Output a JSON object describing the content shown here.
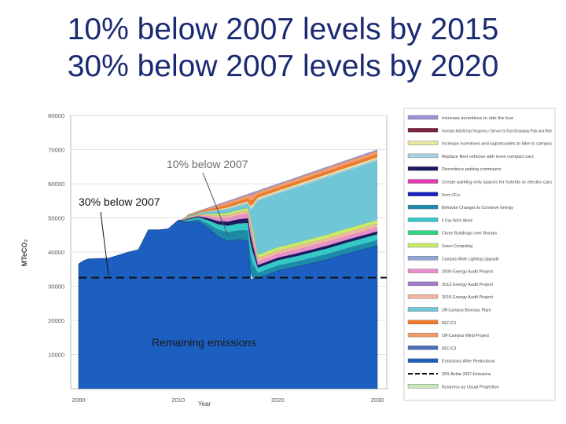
{
  "slide": {
    "title_line1": "10% below 2007 levels by 2015",
    "title_line2": "30% below 2007 levels by 2020"
  },
  "chart_data": {
    "type": "area",
    "title": "",
    "xlabel": "Year",
    "ylabel": "MTeCO₂",
    "xlim": [
      2000,
      2030
    ],
    "ylim": [
      0,
      80000
    ],
    "x_ticks": [
      "2000",
      "2010",
      "2020",
      "2030"
    ],
    "y_ticks": [
      "10000",
      "20000",
      "30000",
      "40000",
      "50000",
      "60000",
      "70000",
      "80000"
    ],
    "grid": true,
    "legend_position": "right",
    "target_line_value": 32500,
    "annotations": {
      "ten_percent": "10% below 2007",
      "thirty_percent": "30% below 2007",
      "remaining": "Remaining emissions"
    },
    "baseline": {
      "name": "Emissions After Reductions",
      "x": [
        2000,
        2000.5,
        2001,
        2003,
        2005,
        2006,
        2007,
        2008,
        2009,
        2010,
        2010.5,
        2011,
        2012,
        2013,
        2014,
        2015,
        2016,
        2017,
        2017.3,
        2018,
        2020,
        2022,
        2025,
        2027,
        2030
      ],
      "y": [
        36500,
        37500,
        38000,
        38200,
        40000,
        40700,
        46500,
        46500,
        46800,
        49300,
        48900,
        48600,
        49000,
        47000,
        44500,
        43200,
        43600,
        43300,
        32000,
        32300,
        34500,
        35700,
        37800,
        39500,
        41800
      ]
    },
    "bau_total": {
      "name": "Business as Usual Projection",
      "x": [
        2012,
        2030
      ],
      "y": [
        52000,
        70000
      ]
    },
    "series": [
      {
        "name": "Increase incentives to ride the bus",
        "color": "#9b93d6"
      },
      {
        "name": "Increase ASUM bus frequency / Service to East Broadway Park and Ride",
        "color": "#7d1f3f"
      },
      {
        "name": "Increase incentives and opportunities to bike to campus",
        "color": "#ece6a3"
      },
      {
        "name": "Replace fleet vehicles with more compact cars",
        "color": "#a7d1e4"
      },
      {
        "name": "Discontinue parking commuters",
        "color": "#1c1a5e"
      },
      {
        "name": "Create parking only spaces for hybrids or electric cars",
        "color": "#e43bb5"
      },
      {
        "name": "Dorm CFLs",
        "color": "#1820c4"
      },
      {
        "name": "Behavior Changes to Conserve Energy",
        "color": "#1c8aa8"
      },
      {
        "name": "4 Day Work Week",
        "color": "#34c9c8"
      },
      {
        "name": "Close Buildings over Breaks",
        "color": "#2fd57e"
      },
      {
        "name": "Green Computing",
        "color": "#c8ec6a"
      },
      {
        "name": "Campus Wide Lighting Upgrade",
        "color": "#8fa8d8"
      },
      {
        "name": "2009 Energy Audit Project",
        "color": "#e88fd0"
      },
      {
        "name": "2012 Energy Audit Project",
        "color": "#a07acb"
      },
      {
        "name": "2015 Energy Audit Project",
        "color": "#f0b6a0"
      },
      {
        "name": "Off-Campus Biomass Plant",
        "color": "#6ec6d6"
      },
      {
        "name": "REC IC2",
        "color": "#f07a28"
      },
      {
        "name": "Off-Campus Wind Project",
        "color": "#f39c6b"
      },
      {
        "name": "REC IC3",
        "color": "#4a6fb8"
      },
      {
        "name": "Emissions After Reductions",
        "color": "#1c5fc1"
      },
      {
        "name": "30% Below 2007 Emissions",
        "color": "#111111"
      },
      {
        "name": "Business as Usual Projection",
        "color": "#c8e8b8"
      }
    ]
  }
}
